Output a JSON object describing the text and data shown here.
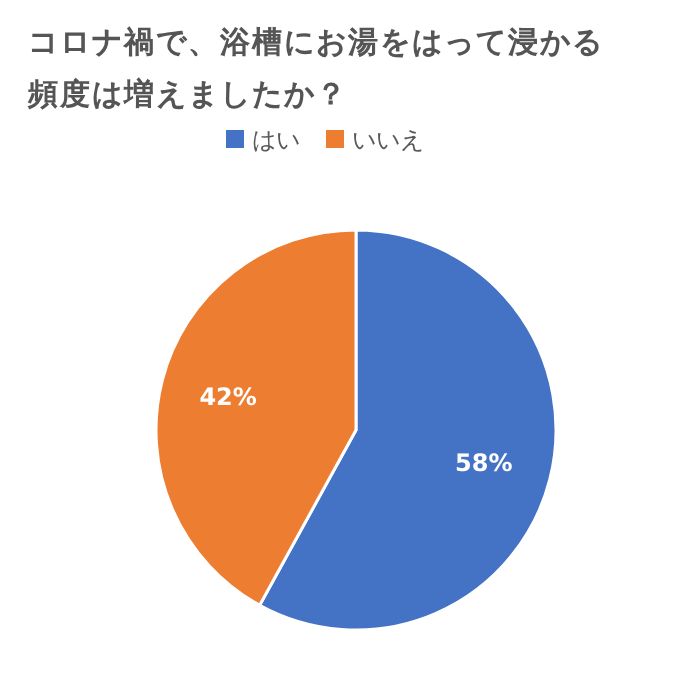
{
  "chart_data": {
    "type": "pie",
    "title": "コロナ禍で、浴槽にお湯をはって浸かる頻度は増えましたか？",
    "categories": [
      "はい",
      "いいえ"
    ],
    "values": [
      58,
      42
    ],
    "colors": [
      "#4472c4",
      "#ed7d31"
    ],
    "value_labels": [
      "58%",
      "42%"
    ],
    "legend": "top"
  }
}
